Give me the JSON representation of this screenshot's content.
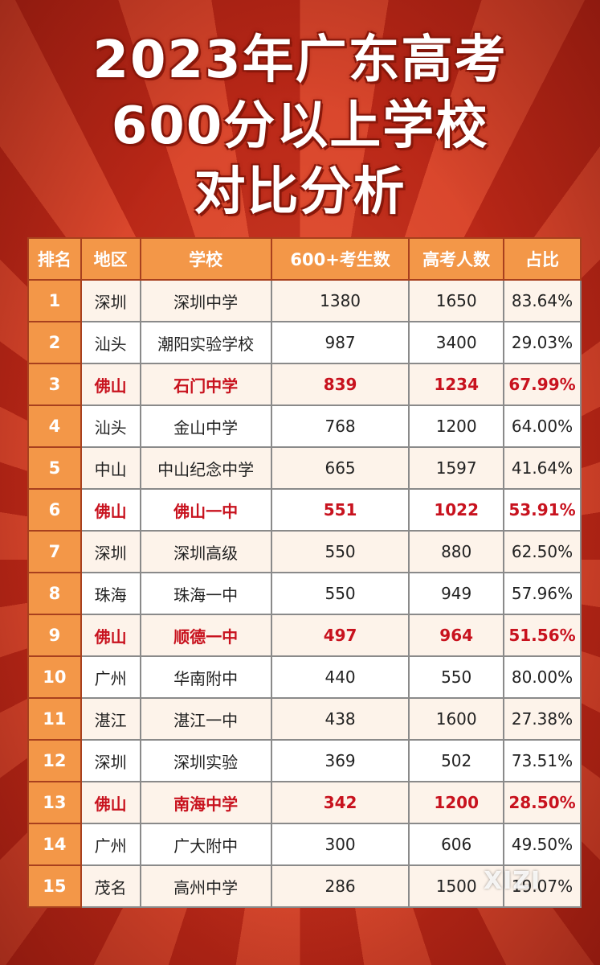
{
  "title": {
    "line1": "2023年广东高考",
    "line2": "600分以上学校",
    "line3": "对比分析"
  },
  "table": {
    "headers": [
      "排名",
      "地区",
      "学校",
      "600+考生数",
      "高考人数",
      "占比"
    ],
    "rows": [
      {
        "rank": "1",
        "region": "深圳",
        "school": "深圳中学",
        "count600": "1380",
        "total": "1650",
        "ratio": "83.64%",
        "highlight": false
      },
      {
        "rank": "2",
        "region": "汕头",
        "school": "潮阳实验学校",
        "count600": "987",
        "total": "3400",
        "ratio": "29.03%",
        "highlight": false
      },
      {
        "rank": "3",
        "region": "佛山",
        "school": "石门中学",
        "count600": "839",
        "total": "1234",
        "ratio": "67.99%",
        "highlight": true
      },
      {
        "rank": "4",
        "region": "汕头",
        "school": "金山中学",
        "count600": "768",
        "total": "1200",
        "ratio": "64.00%",
        "highlight": false
      },
      {
        "rank": "5",
        "region": "中山",
        "school": "中山纪念中学",
        "count600": "665",
        "total": "1597",
        "ratio": "41.64%",
        "highlight": false
      },
      {
        "rank": "6",
        "region": "佛山",
        "school": "佛山一中",
        "count600": "551",
        "total": "1022",
        "ratio": "53.91%",
        "highlight": true
      },
      {
        "rank": "7",
        "region": "深圳",
        "school": "深圳高级",
        "count600": "550",
        "total": "880",
        "ratio": "62.50%",
        "highlight": false
      },
      {
        "rank": "8",
        "region": "珠海",
        "school": "珠海一中",
        "count600": "550",
        "total": "949",
        "ratio": "57.96%",
        "highlight": false
      },
      {
        "rank": "9",
        "region": "佛山",
        "school": "顺德一中",
        "count600": "497",
        "total": "964",
        "ratio": "51.56%",
        "highlight": true
      },
      {
        "rank": "10",
        "region": "广州",
        "school": "华南附中",
        "count600": "440",
        "total": "550",
        "ratio": "80.00%",
        "highlight": false
      },
      {
        "rank": "11",
        "region": "湛江",
        "school": "湛江一中",
        "count600": "438",
        "total": "1600",
        "ratio": "27.38%",
        "highlight": false
      },
      {
        "rank": "12",
        "region": "深圳",
        "school": "深圳实验",
        "count600": "369",
        "total": "502",
        "ratio": "73.51%",
        "highlight": false
      },
      {
        "rank": "13",
        "region": "佛山",
        "school": "南海中学",
        "count600": "342",
        "total": "1200",
        "ratio": "28.50%",
        "highlight": true
      },
      {
        "rank": "14",
        "region": "广州",
        "school": "广大附中",
        "count600": "300",
        "total": "606",
        "ratio": "49.50%",
        "highlight": false
      },
      {
        "rank": "15",
        "region": "茂名",
        "school": "高州中学",
        "count600": "286",
        "total": "1500",
        "ratio": "19.07%",
        "highlight": false
      }
    ]
  },
  "watermark": "XIZI",
  "colors": {
    "background": "#c8301f",
    "header_orange": "#f39748",
    "highlight_red": "#c8121e"
  }
}
